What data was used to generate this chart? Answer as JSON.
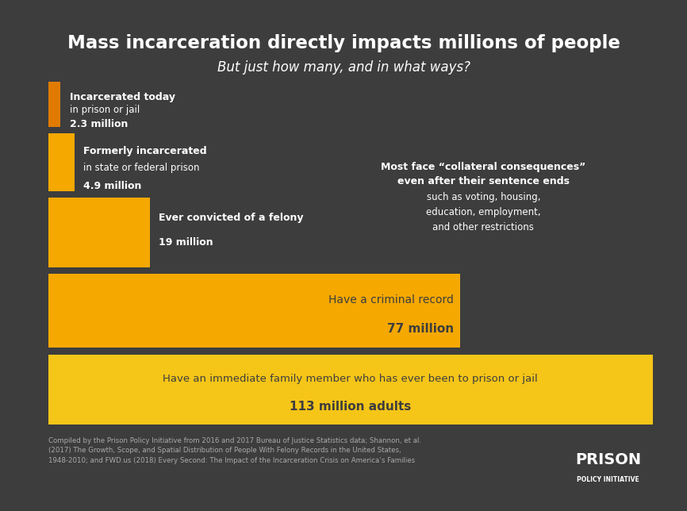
{
  "title": "Mass incarceration directly impacts millions of people",
  "subtitle": "But just how many, and in what ways?",
  "bg_color": "#3d3d3d",
  "text_color_white": "#ffffff",
  "text_color_dark": "#3d3d3d",
  "text_color_orange": "#f5a800",
  "bars": [
    {
      "value": 2.3,
      "label_line1": "Incarcerated today",
      "label_line2": "in prison or jail",
      "label_line3": "2.3 million",
      "color": "#e07b00",
      "text_position": "outside_right",
      "text_color": "#ffffff"
    },
    {
      "value": 4.9,
      "label_line1": "Formerly incarcerated",
      "label_line2": "in state or federal prison",
      "label_line3": "4.9 million",
      "color": "#f5a800",
      "text_position": "outside_right",
      "text_color": "#ffffff"
    },
    {
      "value": 19,
      "label_line1": "Ever convicted of a felony",
      "label_line2": "",
      "label_line3": "19 million",
      "color": "#f5a800",
      "text_position": "outside_right",
      "text_color": "#ffffff"
    },
    {
      "value": 77,
      "label_line1": "Have a criminal record",
      "label_line2": "",
      "label_line3": "77 million",
      "color": "#f5a800",
      "text_position": "inside_right",
      "text_color": "#3d3d3d"
    },
    {
      "value": 113,
      "label_line1": "Have an immediate family member who has ever been to prison or jail",
      "label_line2": "",
      "label_line3": "113 million adults",
      "color": "#f5c518",
      "text_position": "inside_center",
      "text_color": "#3d3d3d"
    }
  ],
  "max_val": 113,
  "annotation_title": "Most face “collateral consequences”\neven after their sentence ends",
  "annotation_body": "such as voting, housing,\neducation, employment,\nand other restrictions",
  "footnote": "Compiled by the Prison Policy Initiative from 2016 and 2017 Bureau of Justice Statistics data; Shannon, et al.\n(2017) The Growth, Scope, and Spatial Distribution of People With Felony Records in the United States,\n1948-2010; and FWD.us (2018) Every Second: The Impact of the Incarceration Crisis on America’s Families"
}
